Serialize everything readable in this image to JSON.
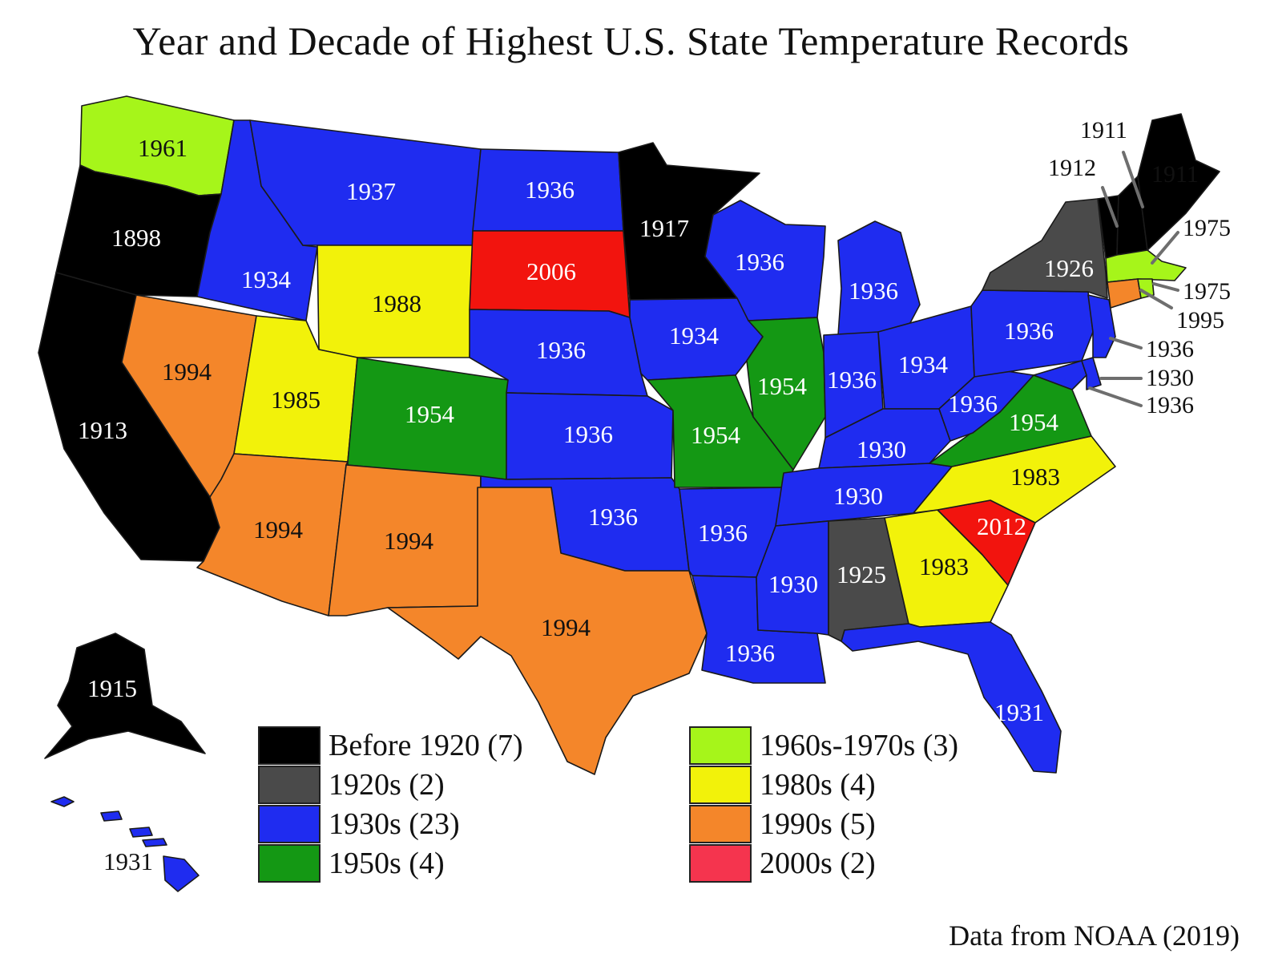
{
  "title": "Year and Decade of Highest U.S. State Temperature Records",
  "source": "Data from NOAA (2019)",
  "colors": {
    "before1920": "#000000",
    "d1920s": "#4a4a4a",
    "d1930s": "#1f2cf0",
    "d1950s": "#149814",
    "d1960s1970s": "#a6f51a",
    "d1980s": "#f2f20a",
    "d1990s": "#f4862a",
    "d2000s": "#f2140e",
    "d2000s_legend": "#f5344e"
  },
  "legend": [
    {
      "label": "Before 1920 (7)",
      "category": "before1920"
    },
    {
      "label": "1920s (2)",
      "category": "d1920s"
    },
    {
      "label": "1930s (23)",
      "category": "d1930s"
    },
    {
      "label": "1950s (4)",
      "category": "d1950s"
    },
    {
      "label": "1960s-1970s (3)",
      "category": "d1960s1970s"
    },
    {
      "label": "1980s (4)",
      "category": "d1980s"
    },
    {
      "label": "1990s (5)",
      "category": "d1990s"
    },
    {
      "label": "2000s (2)",
      "category": "d2000s_legend"
    }
  ],
  "states": [
    {
      "id": "WA",
      "year": "1961",
      "category": "d1960s1970s"
    },
    {
      "id": "OR",
      "year": "1898",
      "category": "before1920"
    },
    {
      "id": "CA",
      "year": "1913",
      "category": "before1920"
    },
    {
      "id": "NV",
      "year": "1994",
      "category": "d1990s"
    },
    {
      "id": "ID",
      "year": "1934",
      "category": "d1930s"
    },
    {
      "id": "MT",
      "year": "1937",
      "category": "d1930s"
    },
    {
      "id": "WY",
      "year": "1988",
      "category": "d1980s"
    },
    {
      "id": "UT",
      "year": "1985",
      "category": "d1980s"
    },
    {
      "id": "AZ",
      "year": "1994",
      "category": "d1990s"
    },
    {
      "id": "CO",
      "year": "1954",
      "category": "d1950s"
    },
    {
      "id": "NM",
      "year": "1994",
      "category": "d1990s"
    },
    {
      "id": "ND",
      "year": "1936",
      "category": "d1930s"
    },
    {
      "id": "SD",
      "year": "2006",
      "category": "d2000s"
    },
    {
      "id": "NE",
      "year": "1936",
      "category": "d1930s"
    },
    {
      "id": "KS",
      "year": "1936",
      "category": "d1930s"
    },
    {
      "id": "OK",
      "year": "1936",
      "category": "d1930s"
    },
    {
      "id": "TX",
      "year": "1994",
      "category": "d1990s"
    },
    {
      "id": "MN",
      "year": "1917",
      "category": "before1920"
    },
    {
      "id": "IA",
      "year": "1934",
      "category": "d1930s"
    },
    {
      "id": "MO",
      "year": "1954",
      "category": "d1950s"
    },
    {
      "id": "AR",
      "year": "1936",
      "category": "d1930s"
    },
    {
      "id": "LA",
      "year": "1936",
      "category": "d1930s"
    },
    {
      "id": "WI",
      "year": "1936",
      "category": "d1930s"
    },
    {
      "id": "IL",
      "year": "1954",
      "category": "d1950s"
    },
    {
      "id": "MI",
      "year": "1936",
      "category": "d1930s"
    },
    {
      "id": "IN",
      "year": "1936",
      "category": "d1930s"
    },
    {
      "id": "OH",
      "year": "1934",
      "category": "d1930s"
    },
    {
      "id": "KY",
      "year": "1930",
      "category": "d1930s"
    },
    {
      "id": "TN",
      "year": "1930",
      "category": "d1930s"
    },
    {
      "id": "MS",
      "year": "1930",
      "category": "d1930s"
    },
    {
      "id": "AL",
      "year": "1925",
      "category": "d1920s"
    },
    {
      "id": "GA",
      "year": "1983",
      "category": "d1980s"
    },
    {
      "id": "FL",
      "year": "1931",
      "category": "d1930s"
    },
    {
      "id": "SC",
      "year": "2012",
      "category": "d2000s"
    },
    {
      "id": "NC",
      "year": "1983",
      "category": "d1980s"
    },
    {
      "id": "VA",
      "year": "1954",
      "category": "d1950s"
    },
    {
      "id": "WV",
      "year": "1936",
      "category": "d1930s"
    },
    {
      "id": "PA",
      "year": "1936",
      "category": "d1930s"
    },
    {
      "id": "NY",
      "year": "1926",
      "category": "d1920s"
    },
    {
      "id": "VT",
      "year": "1912",
      "category": "before1920"
    },
    {
      "id": "NH",
      "year": "1911",
      "category": "before1920"
    },
    {
      "id": "ME",
      "year": "1911",
      "category": "before1920"
    },
    {
      "id": "MA",
      "year": "1975",
      "category": "d1960s1970s"
    },
    {
      "id": "RI",
      "year": "1975",
      "category": "d1960s1970s"
    },
    {
      "id": "CT",
      "year": "1995",
      "category": "d1990s"
    },
    {
      "id": "NJ",
      "year": "1936",
      "category": "d1930s"
    },
    {
      "id": "DE",
      "year": "1930",
      "category": "d1930s"
    },
    {
      "id": "MD",
      "year": "1936",
      "category": "d1930s"
    },
    {
      "id": "AK",
      "year": "1915",
      "category": "before1920"
    },
    {
      "id": "HI",
      "year": "1931",
      "category": "d1930s"
    }
  ]
}
